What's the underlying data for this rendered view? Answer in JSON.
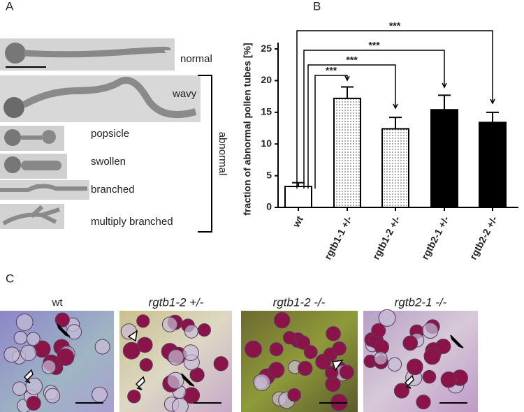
{
  "panel_a": {
    "letter": "A",
    "labels": [
      "normal",
      "wavy",
      "popsicle",
      "swollen",
      "branched",
      "multiply branched"
    ],
    "group_label": "abnormal"
  },
  "chart_data": {
    "type": "bar",
    "letter": "B",
    "y_label": "fraction of abnormal pollen tubes [%]",
    "categories": [
      "wt",
      "rgtb1-1 +/-",
      "rgtb1-2 +/-",
      "rgtb2-1 +/-",
      "rgtb2-2 +/-"
    ],
    "values": [
      3.3,
      17.2,
      12.4,
      15.4,
      13.4
    ],
    "errors": [
      0.6,
      1.8,
      1.8,
      2.3,
      1.6
    ],
    "fills": [
      "#ffffff",
      "dotted",
      "dotted",
      "#000000",
      "#000000"
    ],
    "ylim": [
      0,
      26
    ],
    "yticks": [
      0,
      5,
      10,
      15,
      20,
      25
    ],
    "annotations": [
      "***",
      "***",
      "***",
      "***"
    ]
  },
  "panel_c": {
    "letter": "C",
    "titles": [
      "wt",
      "rgtb1-2 +/-",
      "rgtb1-2 -/-",
      "rgtb2-1 -/-"
    ]
  }
}
